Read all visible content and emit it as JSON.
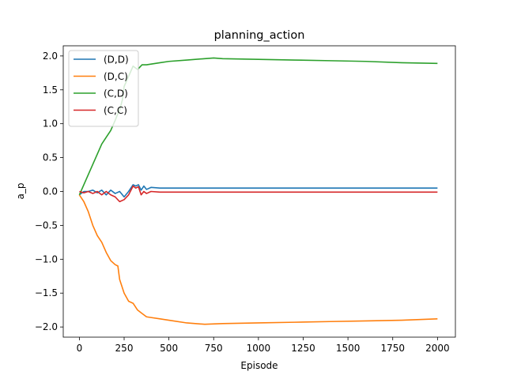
{
  "chart_data": {
    "type": "line",
    "title": "planning_action",
    "xlabel": "Episode",
    "ylabel": "a_p",
    "xlim": [
      -90,
      2100
    ],
    "ylim": [
      -2.15,
      2.15
    ],
    "xticks": [
      0,
      250,
      500,
      750,
      1000,
      1250,
      1500,
      1750,
      2000
    ],
    "yticks": [
      -2.0,
      -1.5,
      -1.0,
      -0.5,
      0.0,
      0.5,
      1.0,
      1.5,
      2.0
    ],
    "ytick_labels": [
      "−2.0",
      "−1.5",
      "−1.0",
      "−0.5",
      "0.0",
      "0.5",
      "1.0",
      "1.5",
      "2.0"
    ],
    "grid": false,
    "legend_position": "top-left",
    "series": [
      {
        "name": "(D,D)",
        "color": "#1f77b4",
        "x": [
          0,
          25,
          50,
          75,
          100,
          125,
          150,
          175,
          200,
          225,
          250,
          275,
          300,
          315,
          330,
          345,
          360,
          375,
          400,
          450,
          500,
          600,
          700,
          800,
          1000,
          1200,
          1400,
          1600,
          1800,
          2000
        ],
        "y": [
          -0.05,
          0.0,
          0.0,
          0.02,
          -0.02,
          0.02,
          -0.05,
          0.02,
          -0.03,
          0.0,
          -0.08,
          0.0,
          0.1,
          0.08,
          0.1,
          0.02,
          0.08,
          0.03,
          0.06,
          0.05,
          0.05,
          0.05,
          0.05,
          0.05,
          0.05,
          0.05,
          0.05,
          0.05,
          0.05,
          0.05
        ]
      },
      {
        "name": "(D,C)",
        "color": "#ff7f0e",
        "x": [
          0,
          25,
          50,
          75,
          100,
          125,
          150,
          175,
          200,
          215,
          225,
          250,
          275,
          300,
          325,
          350,
          375,
          400,
          450,
          500,
          600,
          700,
          800,
          1000,
          1200,
          1400,
          1600,
          1800,
          2000
        ],
        "y": [
          -0.05,
          -0.15,
          -0.3,
          -0.5,
          -0.65,
          -0.75,
          -0.9,
          -1.02,
          -1.08,
          -1.1,
          -1.3,
          -1.5,
          -1.62,
          -1.65,
          -1.75,
          -1.8,
          -1.85,
          -1.86,
          -1.88,
          -1.9,
          -1.94,
          -1.96,
          -1.95,
          -1.94,
          -1.93,
          -1.92,
          -1.91,
          -1.9,
          -1.88
        ]
      },
      {
        "name": "(C,D)",
        "color": "#2ca02c",
        "x": [
          0,
          25,
          50,
          75,
          100,
          125,
          150,
          175,
          200,
          215,
          225,
          240,
          250,
          275,
          300,
          325,
          350,
          375,
          400,
          450,
          500,
          600,
          700,
          750,
          800,
          1000,
          1200,
          1400,
          1600,
          1800,
          2000
        ],
        "y": [
          -0.05,
          0.1,
          0.25,
          0.4,
          0.55,
          0.7,
          0.8,
          0.9,
          1.05,
          1.15,
          1.2,
          1.35,
          1.55,
          1.7,
          1.85,
          1.8,
          1.87,
          1.87,
          1.88,
          1.9,
          1.92,
          1.94,
          1.96,
          1.97,
          1.96,
          1.95,
          1.94,
          1.93,
          1.92,
          1.9,
          1.89
        ]
      },
      {
        "name": "(C,C)",
        "color": "#d62728",
        "x": [
          0,
          25,
          50,
          75,
          100,
          125,
          150,
          175,
          200,
          225,
          250,
          275,
          300,
          315,
          330,
          345,
          360,
          375,
          400,
          450,
          500,
          600,
          800,
          1000,
          1200,
          1400,
          1600,
          1800,
          2000
        ],
        "y": [
          0.0,
          -0.02,
          0.0,
          -0.03,
          0.0,
          -0.05,
          0.0,
          -0.05,
          -0.08,
          -0.15,
          -0.12,
          -0.05,
          0.08,
          0.05,
          0.07,
          -0.05,
          0.0,
          -0.03,
          0.0,
          -0.01,
          -0.01,
          -0.01,
          -0.01,
          -0.01,
          -0.01,
          -0.01,
          -0.01,
          -0.01,
          -0.01
        ]
      }
    ]
  }
}
